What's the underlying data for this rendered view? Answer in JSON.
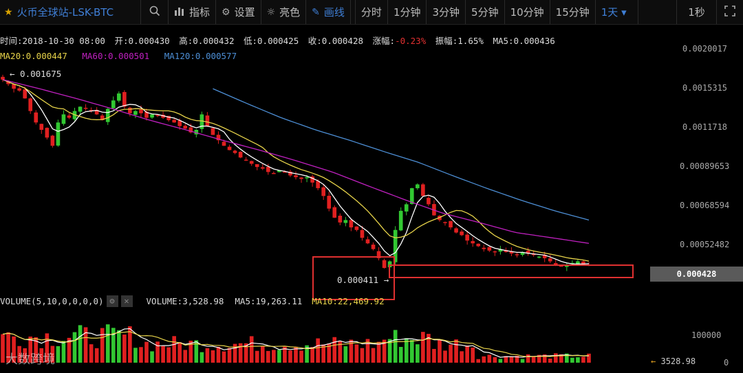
{
  "toolbar": {
    "title": "火币全球站-LSK-BTC",
    "items": [
      "指标",
      "设置",
      "亮色",
      "画线"
    ],
    "periods": [
      "分时",
      "1分钟",
      "3分钟",
      "5分钟",
      "10分钟",
      "15分钟",
      "1天 ▾"
    ],
    "right_label": "1秒"
  },
  "info": {
    "time": "时间:2018-10-30 08:00",
    "open": "开:0.000430",
    "high": "高:0.000432",
    "low": "低:0.000425",
    "close": "收:0.000428",
    "change_label": "涨幅:",
    "change_value": "-0.23%",
    "amplitude": "振幅:1.65%",
    "ma5": "MA5:0.000436",
    "ma20": "MA20:0.000447",
    "ma60": "MA60:0.000501",
    "ma120": "MA120:0.000577"
  },
  "volume_info": {
    "label": "VOLUME(5,10,0,0,0,0)",
    "value": "VOLUME:3,528.98",
    "ma5": "MA5:19,263.11",
    "ma10": "MA10:22,469.92"
  },
  "y_axis": [
    "0.0020017",
    "0.0015315",
    "0.0011718",
    "0.00089653",
    "0.00068594",
    "0.00052482"
  ],
  "vol_axis": [
    "100000",
    "0"
  ],
  "current_price": "0.000428",
  "current_volume": "3528.98",
  "annotations": {
    "high_marker": "← 0.001675",
    "low_marker": "0.000411 →"
  },
  "watermark": "大数跨境",
  "colors": {
    "up": "#32c832",
    "down": "#e02020",
    "ma5": "#ffffff",
    "ma20": "#e8d44a",
    "ma60": "#c020c0",
    "ma120": "#4d8fd6",
    "highlight_box": "#e03030",
    "accent": "#3f7fd6"
  },
  "chart_data": {
    "type": "candlestick",
    "log_scale": true,
    "ylim": [
      0.0004,
      0.0020017
    ],
    "volume_ylim": [
      0,
      160000
    ],
    "close_series": [
      0.0016,
      0.00155,
      0.0015,
      0.00148,
      0.0014,
      0.00128,
      0.00118,
      0.00112,
      0.00106,
      0.001,
      0.00118,
      0.00125,
      0.00122,
      0.00128,
      0.00132,
      0.0013,
      0.00128,
      0.00125,
      0.0012,
      0.0013,
      0.00138,
      0.00145,
      0.00132,
      0.00126,
      0.00128,
      0.00126,
      0.00122,
      0.00125,
      0.00124,
      0.00122,
      0.0012,
      0.00118,
      0.00115,
      0.00113,
      0.0011,
      0.00112,
      0.00125,
      0.00115,
      0.00108,
      0.00104,
      0.001,
      0.00097,
      0.00095,
      0.00092,
      0.0009,
      0.00088,
      0.00086,
      0.00085,
      0.00083,
      0.00082,
      0.00084,
      0.00083,
      0.00081,
      0.0008,
      0.00079,
      0.0008,
      0.00077,
      0.00074,
      0.0007,
      0.00064,
      0.0006,
      0.00058,
      0.00059,
      0.00056,
      0.00055,
      0.00052,
      0.0005,
      0.00048,
      0.00045,
      0.00042,
      0.00044,
      0.00055,
      0.00063,
      0.00066,
      0.00074,
      0.00076,
      0.0007,
      0.00066,
      0.00061,
      0.00059,
      0.00058,
      0.00056,
      0.00054,
      0.00053,
      0.00051,
      0.0005,
      0.00049,
      0.00048,
      0.000475,
      0.00047,
      0.00048,
      0.00047,
      0.000465,
      0.00046,
      0.00047,
      0.000465,
      0.00046,
      0.000455,
      0.00045,
      0.00044,
      0.00043,
      0.000425,
      0.00043,
      0.000435,
      0.00044,
      0.00043,
      0.000428
    ],
    "ma60": [
      0.0016,
      0.0015,
      0.0014,
      0.0013,
      0.0012,
      0.00112,
      0.00104,
      0.00097,
      0.0009,
      0.00083,
      0.00075,
      0.00068,
      0.00062,
      0.00058,
      0.00054,
      0.00052,
      0.0005
    ],
    "ma120": [
      0.0015,
      0.00135,
      0.00122,
      0.00112,
      0.00104,
      0.00096,
      0.00089,
      0.00081,
      0.00074,
      0.00068,
      0.00063,
      0.00059
    ],
    "current_price": 0.000428,
    "high_marker": 0.001675,
    "low_marker": 0.000411,
    "current_volume": 3528.98
  }
}
